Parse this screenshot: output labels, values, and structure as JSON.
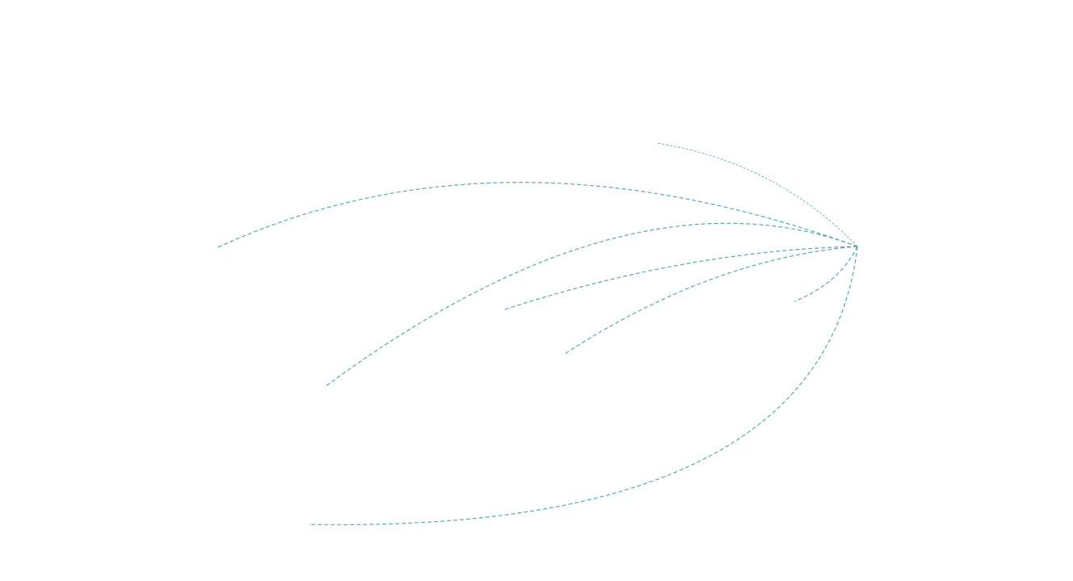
{
  "map": {
    "route_color": "#5aa8b0",
    "background": "#ffffff",
    "routes": [
      {
        "id": "route-1"
      },
      {
        "id": "route-2"
      },
      {
        "id": "route-3"
      },
      {
        "id": "route-4"
      },
      {
        "id": "route-5"
      },
      {
        "id": "route-6"
      },
      {
        "id": "route-7"
      }
    ]
  }
}
